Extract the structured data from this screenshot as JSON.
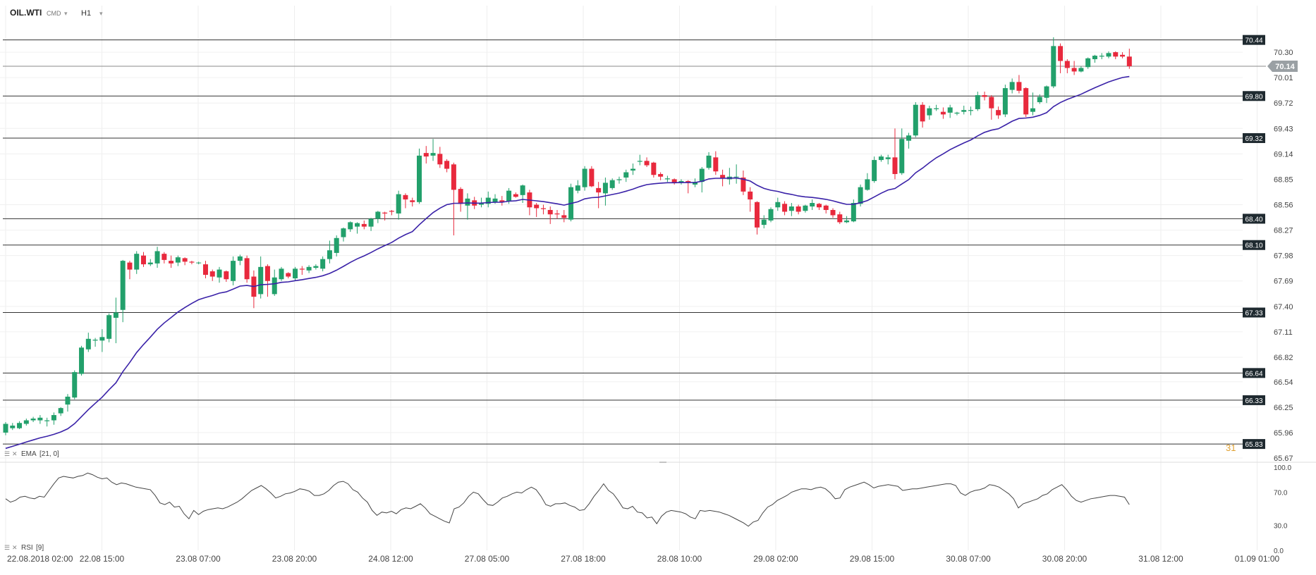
{
  "header": {
    "symbol": "OIL.WTI",
    "type_label": "CMD",
    "timeframe": "H1"
  },
  "indicators": {
    "ema_label": "EMA",
    "ema_params": "[21, 0]",
    "rsi_label": "RSI",
    "rsi_params": "[9]",
    "overlay_value": "31"
  },
  "colors": {
    "up": "#22a06b",
    "down": "#e8293d",
    "ema": "#3a22a8",
    "level_line": "#333333",
    "current_line": "#8a8a8a",
    "label_bg": "#1f2a30",
    "current_bg": "#9aa0a4",
    "rsi_line": "#444444",
    "overlay_text": "#e0a030"
  },
  "chart_data": [
    {
      "type": "candlestick",
      "title": "OIL.WTI H1",
      "y_range": [
        65.67,
        70.59
      ],
      "price_ticks": [
        "70.30",
        "70.01",
        "69.72",
        "69.43",
        "69.14",
        "68.85",
        "68.56",
        "68.27",
        "67.98",
        "67.69",
        "67.40",
        "67.11",
        "66.82",
        "66.54",
        "66.25",
        "65.96",
        "65.67"
      ],
      "time_ticks": [
        "22.08.2018  02:00",
        "22.08  15:00",
        "23.08  07:00",
        "23.08  20:00",
        "24.08  12:00",
        "27.08  05:00",
        "27.08  18:00",
        "28.08  10:00",
        "29.08  02:00",
        "29.08  15:00",
        "30.08  07:00",
        "30.08  20:00",
        "31.08  12:00",
        "01.09  01:00"
      ],
      "levels": [
        "70.44",
        "69.80",
        "69.32",
        "68.40",
        "68.10",
        "67.33",
        "66.64",
        "66.33",
        "65.83"
      ],
      "current_price": "70.14",
      "candles": [
        [
          65.96,
          66.06,
          65.93,
          66.08
        ],
        [
          66.01,
          66.04,
          65.99,
          66.07
        ],
        [
          66.01,
          66.07,
          66.0,
          66.09
        ],
        [
          66.06,
          66.1,
          66.04,
          66.12
        ],
        [
          66.1,
          66.12,
          66.08,
          66.14
        ],
        [
          66.1,
          66.13,
          66.06,
          66.16
        ],
        [
          66.09,
          66.1,
          66.03,
          66.13
        ],
        [
          66.1,
          66.16,
          66.05,
          66.19
        ],
        [
          66.18,
          66.24,
          66.15,
          66.25
        ],
        [
          66.28,
          66.37,
          66.2,
          66.4
        ],
        [
          66.36,
          66.65,
          66.34,
          66.67
        ],
        [
          66.63,
          66.93,
          66.61,
          66.95
        ],
        [
          66.91,
          67.03,
          66.88,
          67.1
        ],
        [
          67.01,
          67.02,
          66.94,
          67.04
        ],
        [
          67.01,
          67.05,
          66.88,
          67.14
        ],
        [
          67.03,
          67.3,
          66.99,
          67.32
        ],
        [
          67.27,
          67.33,
          66.98,
          67.5
        ],
        [
          67.36,
          67.92,
          67.22,
          67.93
        ],
        [
          67.9,
          67.82,
          67.71,
          67.92
        ],
        [
          67.82,
          68.0,
          67.77,
          68.03
        ],
        [
          67.98,
          67.88,
          67.85,
          68.02
        ],
        [
          67.88,
          67.9,
          67.86,
          67.94
        ],
        [
          67.89,
          68.03,
          67.84,
          68.08
        ],
        [
          68.0,
          67.93,
          67.89,
          68.02
        ],
        [
          67.92,
          67.89,
          67.84,
          67.98
        ],
        [
          67.9,
          67.96,
          67.86,
          67.98
        ],
        [
          67.95,
          67.91,
          67.87,
          67.96
        ],
        [
          67.91,
          67.9,
          67.88,
          67.92
        ],
        [
          67.9,
          67.9,
          67.88,
          67.91
        ],
        [
          67.88,
          67.76,
          67.72,
          67.92
        ],
        [
          67.8,
          67.74,
          67.69,
          67.82
        ],
        [
          67.73,
          67.82,
          67.67,
          67.85
        ],
        [
          67.8,
          67.71,
          67.68,
          67.81
        ],
        [
          67.69,
          67.92,
          67.64,
          67.97
        ],
        [
          67.92,
          67.97,
          67.87,
          67.99
        ],
        [
          67.95,
          67.71,
          67.67,
          67.98
        ],
        [
          67.74,
          67.51,
          67.38,
          67.81
        ],
        [
          67.54,
          67.85,
          67.49,
          67.97
        ],
        [
          67.86,
          67.69,
          67.51,
          67.88
        ],
        [
          67.54,
          67.73,
          67.52,
          67.82
        ],
        [
          67.71,
          67.83,
          67.69,
          67.85
        ],
        [
          67.78,
          67.74,
          67.72,
          67.79
        ],
        [
          67.72,
          67.83,
          67.7,
          67.85
        ],
        [
          67.83,
          67.82,
          67.76,
          67.86
        ],
        [
          67.81,
          67.85,
          67.78,
          67.87
        ],
        [
          67.84,
          67.86,
          67.82,
          67.88
        ],
        [
          67.83,
          67.94,
          67.8,
          67.97
        ],
        [
          67.94,
          68.04,
          67.89,
          68.15
        ],
        [
          68.01,
          68.18,
          67.97,
          68.21
        ],
        [
          68.19,
          68.29,
          68.14,
          68.3
        ],
        [
          68.28,
          68.36,
          68.25,
          68.37
        ],
        [
          68.31,
          68.35,
          68.23,
          68.36
        ],
        [
          68.34,
          68.31,
          68.28,
          68.38
        ],
        [
          68.31,
          68.4,
          68.26,
          68.41
        ],
        [
          68.4,
          68.48,
          68.35,
          68.49
        ],
        [
          68.47,
          68.46,
          68.38,
          68.48
        ],
        [
          68.49,
          68.48,
          68.44,
          68.5
        ],
        [
          68.46,
          68.68,
          68.39,
          68.72
        ],
        [
          68.67,
          68.62,
          68.52,
          68.69
        ],
        [
          68.61,
          68.59,
          68.54,
          68.64
        ],
        [
          68.59,
          69.12,
          68.57,
          69.2
        ],
        [
          69.15,
          69.11,
          69.03,
          69.23
        ],
        [
          69.12,
          69.15,
          69.06,
          69.31
        ],
        [
          69.14,
          69.02,
          68.98,
          69.22
        ],
        [
          69.06,
          68.97,
          68.93,
          69.08
        ],
        [
          69.02,
          68.73,
          68.21,
          69.04
        ],
        [
          68.74,
          68.57,
          68.48,
          68.76
        ],
        [
          68.55,
          68.63,
          68.39,
          68.69
        ],
        [
          68.61,
          68.55,
          68.51,
          68.65
        ],
        [
          68.56,
          68.58,
          68.53,
          68.64
        ],
        [
          68.57,
          68.64,
          68.53,
          68.71
        ],
        [
          68.59,
          68.63,
          68.57,
          68.68
        ],
        [
          68.61,
          68.59,
          68.55,
          68.66
        ],
        [
          68.6,
          68.72,
          68.57,
          68.75
        ],
        [
          68.68,
          68.65,
          68.64,
          68.7
        ],
        [
          68.67,
          68.78,
          68.58,
          68.79
        ],
        [
          68.7,
          68.53,
          68.44,
          68.73
        ],
        [
          68.56,
          68.52,
          68.42,
          68.58
        ],
        [
          68.52,
          68.51,
          68.45,
          68.56
        ],
        [
          68.5,
          68.45,
          68.34,
          68.54
        ],
        [
          68.46,
          68.45,
          68.4,
          68.5
        ],
        [
          68.44,
          68.41,
          68.36,
          68.5
        ],
        [
          68.39,
          68.76,
          68.37,
          68.8
        ],
        [
          68.72,
          68.78,
          68.69,
          68.84
        ],
        [
          68.76,
          68.97,
          68.72,
          69.0
        ],
        [
          68.97,
          68.77,
          68.76,
          69.0
        ],
        [
          68.75,
          68.7,
          68.52,
          68.82
        ],
        [
          68.69,
          68.81,
          68.55,
          68.87
        ],
        [
          68.75,
          68.84,
          68.73,
          68.86
        ],
        [
          68.84,
          68.85,
          68.8,
          68.88
        ],
        [
          68.87,
          68.93,
          68.82,
          68.96
        ],
        [
          68.95,
          68.97,
          68.9,
          69.03
        ],
        [
          69.05,
          69.06,
          69.01,
          69.13
        ],
        [
          69.06,
          69.01,
          68.99,
          69.1
        ],
        [
          69.04,
          68.9,
          68.87,
          69.05
        ],
        [
          68.91,
          68.88,
          68.84,
          68.93
        ],
        [
          68.85,
          68.86,
          68.82,
          68.89
        ],
        [
          68.85,
          68.81,
          68.79,
          68.86
        ],
        [
          68.81,
          68.83,
          68.79,
          68.85
        ],
        [
          68.83,
          68.81,
          68.69,
          68.84
        ],
        [
          68.79,
          68.82,
          68.76,
          68.86
        ],
        [
          68.82,
          68.97,
          68.7,
          68.99
        ],
        [
          68.98,
          69.12,
          68.96,
          69.16
        ],
        [
          69.1,
          68.94,
          68.9,
          69.17
        ],
        [
          68.9,
          68.86,
          68.77,
          68.96
        ],
        [
          68.85,
          68.88,
          68.79,
          68.98
        ],
        [
          68.88,
          68.88,
          68.8,
          69.02
        ],
        [
          68.87,
          68.71,
          68.67,
          68.95
        ],
        [
          68.71,
          68.62,
          68.48,
          68.76
        ],
        [
          68.59,
          68.3,
          68.22,
          68.6
        ],
        [
          68.33,
          68.39,
          68.29,
          68.44
        ],
        [
          68.38,
          68.51,
          68.36,
          68.53
        ],
        [
          68.53,
          68.59,
          68.49,
          68.64
        ],
        [
          68.57,
          68.48,
          68.44,
          68.6
        ],
        [
          68.49,
          68.54,
          68.43,
          68.58
        ],
        [
          68.54,
          68.48,
          68.45,
          68.56
        ],
        [
          68.49,
          68.55,
          68.47,
          68.56
        ],
        [
          68.54,
          68.58,
          68.5,
          68.62
        ],
        [
          68.57,
          68.53,
          68.5,
          68.58
        ],
        [
          68.55,
          68.5,
          68.46,
          68.56
        ],
        [
          68.5,
          68.44,
          68.41,
          68.52
        ],
        [
          68.45,
          68.36,
          68.34,
          68.48
        ],
        [
          68.36,
          68.38,
          68.35,
          68.43
        ],
        [
          68.37,
          68.58,
          68.36,
          68.62
        ],
        [
          68.57,
          68.76,
          68.54,
          68.79
        ],
        [
          68.73,
          68.85,
          68.72,
          68.92
        ],
        [
          68.83,
          69.07,
          68.81,
          69.11
        ],
        [
          69.07,
          69.11,
          69.05,
          69.13
        ],
        [
          69.08,
          69.1,
          69.02,
          69.13
        ],
        [
          69.1,
          68.91,
          68.85,
          69.43
        ],
        [
          68.92,
          69.31,
          68.9,
          69.43
        ],
        [
          69.29,
          69.35,
          69.2,
          69.38
        ],
        [
          69.35,
          69.7,
          69.33,
          69.73
        ],
        [
          69.7,
          69.51,
          69.44,
          69.73
        ],
        [
          69.58,
          69.66,
          69.53,
          69.69
        ],
        [
          69.65,
          69.66,
          69.63,
          69.7
        ],
        [
          69.62,
          69.59,
          69.54,
          69.67
        ],
        [
          69.61,
          69.67,
          69.55,
          69.7
        ],
        [
          69.6,
          69.61,
          69.58,
          69.62
        ],
        [
          69.62,
          69.64,
          69.59,
          69.69
        ],
        [
          69.63,
          69.64,
          69.58,
          69.68
        ],
        [
          69.65,
          69.81,
          69.63,
          69.85
        ],
        [
          69.81,
          69.79,
          69.75,
          69.85
        ],
        [
          69.79,
          69.66,
          69.53,
          69.81
        ],
        [
          69.64,
          69.58,
          69.54,
          69.68
        ],
        [
          69.59,
          69.89,
          69.56,
          69.93
        ],
        [
          69.87,
          69.96,
          69.83,
          70.0
        ],
        [
          69.96,
          69.86,
          69.83,
          70.04
        ],
        [
          69.89,
          69.59,
          69.56,
          69.9
        ],
        [
          69.62,
          69.66,
          69.58,
          69.84
        ],
        [
          69.73,
          69.79,
          69.71,
          69.82
        ],
        [
          69.78,
          69.91,
          69.72,
          69.92
        ],
        [
          69.91,
          70.37,
          69.89,
          70.47
        ],
        [
          70.37,
          70.2,
          70.06,
          70.4
        ],
        [
          70.2,
          70.12,
          70.06,
          70.22
        ],
        [
          70.12,
          70.08,
          70.04,
          70.2
        ],
        [
          70.08,
          70.12,
          70.07,
          70.14
        ],
        [
          70.13,
          70.23,
          70.11,
          70.24
        ],
        [
          70.22,
          70.26,
          70.18,
          70.27
        ],
        [
          70.25,
          70.26,
          70.22,
          70.29
        ],
        [
          70.25,
          70.29,
          70.23,
          70.31
        ],
        [
          70.3,
          70.25,
          70.22,
          70.31
        ],
        [
          70.27,
          70.25,
          70.23,
          70.3
        ],
        [
          70.25,
          70.14,
          70.11,
          70.34
        ]
      ],
      "ema": {
        "name": "EMA [21, 0]",
        "start": 65.78,
        "end": 70.04
      }
    },
    {
      "type": "line",
      "title": "RSI [9]",
      "y_range": [
        0,
        100
      ],
      "y_ticks": [
        "100.0",
        "70.0",
        "30.0",
        "0.0"
      ],
      "values": [
        62,
        58,
        60,
        64,
        65,
        63,
        62,
        65,
        64,
        72,
        80,
        87,
        89,
        88,
        87,
        89,
        90,
        93,
        91,
        88,
        86,
        87,
        82,
        79,
        81,
        80,
        78,
        76,
        75,
        74,
        73,
        66,
        57,
        55,
        58,
        52,
        53,
        44,
        38,
        48,
        43,
        47,
        49,
        50,
        51,
        50,
        52,
        55,
        58,
        62,
        67,
        72,
        75,
        78,
        74,
        69,
        63,
        65,
        68,
        69,
        71,
        74,
        73,
        71,
        66,
        66,
        68,
        72,
        78,
        82,
        83,
        80,
        73,
        70,
        63,
        58,
        48,
        42,
        46,
        45,
        47,
        44,
        49,
        51,
        50,
        53,
        56,
        51,
        44,
        41,
        38,
        35,
        33,
        50,
        52,
        57,
        65,
        70,
        68,
        61,
        55,
        54,
        58,
        63,
        65,
        68,
        70,
        69,
        73,
        76,
        73,
        65,
        55,
        53,
        56,
        56,
        57,
        54,
        52,
        48,
        49,
        56,
        65,
        72,
        80,
        72,
        68,
        60,
        51,
        50,
        53,
        46,
        45,
        39,
        40,
        32,
        41,
        46,
        48,
        47,
        46,
        44,
        40,
        38,
        48,
        47,
        48,
        47,
        46,
        44,
        42,
        39,
        36,
        33,
        29,
        34,
        36,
        45,
        52,
        55,
        60,
        63,
        66,
        70,
        72,
        74,
        74,
        73,
        75,
        76,
        74,
        69,
        62,
        63,
        73,
        76,
        78,
        80,
        82,
        79,
        75,
        77,
        78,
        79,
        78,
        77,
        72,
        73,
        74,
        74,
        75,
        76,
        77,
        78,
        79,
        80,
        80,
        78,
        69,
        66,
        70,
        72,
        73,
        75,
        79,
        78,
        76,
        72,
        68,
        62,
        51,
        56,
        58,
        60,
        62,
        66,
        68,
        73,
        76,
        79,
        73,
        65,
        60,
        58,
        60,
        62,
        63,
        64,
        65,
        66,
        66,
        65,
        64,
        55
      ]
    }
  ]
}
